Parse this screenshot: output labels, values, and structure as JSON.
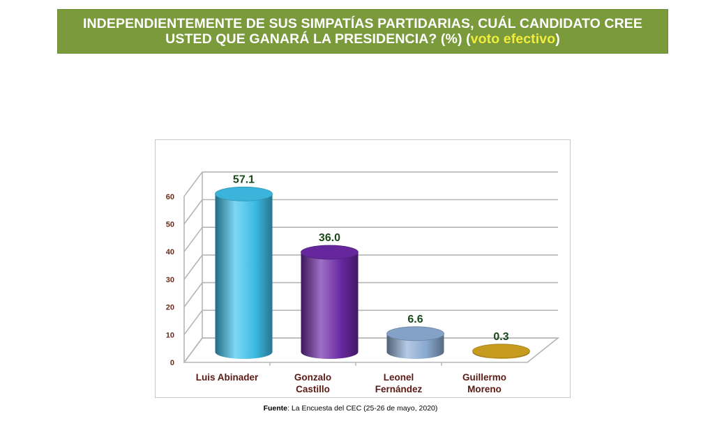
{
  "header": {
    "title_line1": "INDEPENDIENTEMENTE DE SUS SIMPATÍAS PARTIDARIAS, CUÁL CANDIDATO CREE",
    "title_line2_a": "USTED QUE GANARÁ LA PRESIDENCIA? (%) (",
    "title_line2_highlight": "voto efectivo",
    "title_line2_b": ")"
  },
  "footer": {
    "source_label": "Fuente",
    "source_text": ": La Encuesta del CEC (25-26 de mayo, 2020)"
  },
  "chart_data": {
    "type": "bar",
    "categories": [
      [
        "Luis Abinader"
      ],
      [
        "Gonzalo",
        "Castillo"
      ],
      [
        "Leonel",
        "Fernández"
      ],
      [
        "Guillermo",
        "Moreno"
      ]
    ],
    "values": [
      57.1,
      36.0,
      6.6,
      0.3
    ],
    "value_labels": [
      "57.1",
      "36.0",
      "6.6",
      "0.3"
    ],
    "colors": [
      "#3fc4ee",
      "#6e2aa8",
      "#8fb0d8",
      "#d8a820"
    ],
    "ylim": [
      0,
      60
    ],
    "yticks": [
      0,
      10,
      20,
      30,
      40,
      50,
      60
    ],
    "grid": true,
    "style": "3d-cylinder"
  }
}
